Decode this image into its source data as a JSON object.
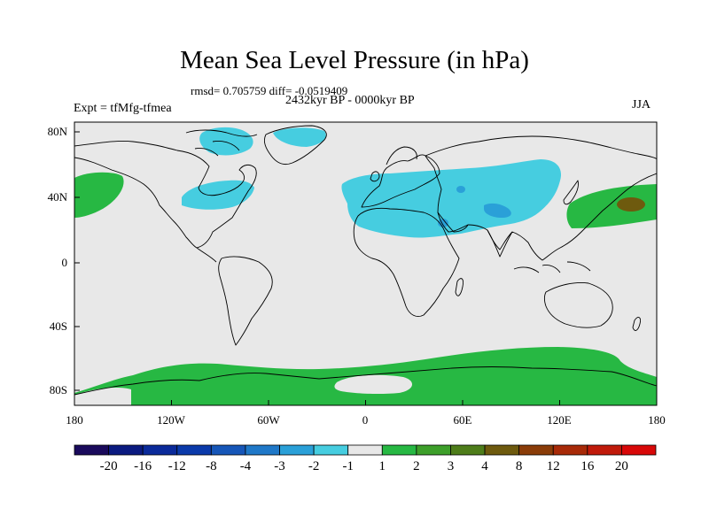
{
  "title": "Mean Sea Level Pressure (in hPa)",
  "stats_line": "rmsd= 0.705759 diff= -0.0519409",
  "period": "2432kyr BP - 0000kyr BP",
  "experiment": "Expt = tfMfg-tfmea",
  "season": "JJA",
  "lat_labels": [
    "80N",
    "40N",
    "0",
    "40S",
    "80S"
  ],
  "lon_labels": [
    "180",
    "120W",
    "60W",
    "0",
    "60E",
    "120E",
    "180"
  ],
  "colorbar": {
    "labels": [
      "-20",
      "-16",
      "-12",
      "-8",
      "-4",
      "-3",
      "-2",
      "-1",
      "1",
      "2",
      "3",
      "4",
      "8",
      "12",
      "16",
      "20"
    ],
    "colors": [
      "#1a0a5c",
      "#0a1a80",
      "#0a2a9a",
      "#0a3aaa",
      "#1656b8",
      "#1f78c8",
      "#2aa0d8",
      "#46cde0",
      "#e8e8e8",
      "#27b843",
      "#3d9f2a",
      "#4e7d1a",
      "#6e5a0e",
      "#8a3c08",
      "#a82a08",
      "#c01a0a",
      "#d80808"
    ]
  },
  "colors": {
    "ocean_background": "#e8e8e8",
    "negative_anomaly": "#46cde0",
    "negative_anomaly_strong": "#2aa0d8",
    "positive_anomaly": "#27b843",
    "positive_anomaly_strong": "#6e5a0e"
  }
}
